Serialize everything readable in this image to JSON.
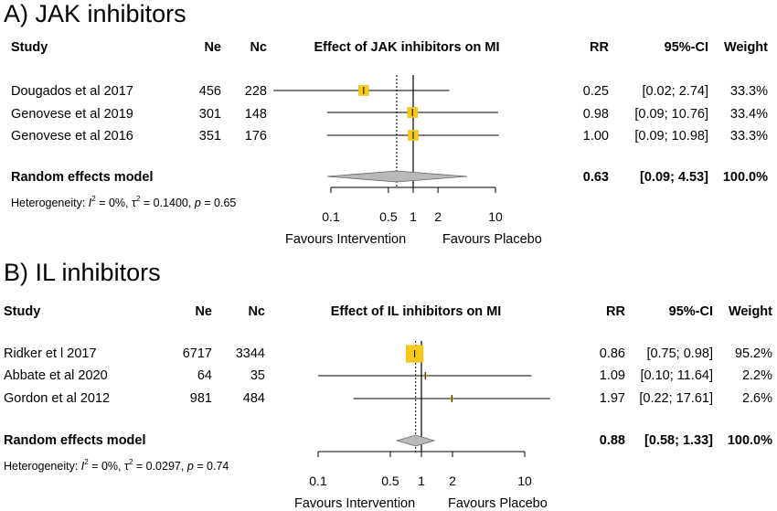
{
  "chart_data": [
    {
      "type": "forest",
      "panel_title": "A) JAK inhibitors",
      "headers": {
        "study": "Study",
        "ne": "Ne",
        "nc": "Nc",
        "effect": "Effect of JAK inhibitors on MI",
        "rr": "RR",
        "ci": "95%-CI",
        "weight": "Weight"
      },
      "studies": [
        {
          "name": "Dougados et al 2017",
          "ne": "456",
          "nc": "228",
          "rr": 0.25,
          "lo": 0.02,
          "hi": 2.74,
          "weight_pct": 33.3,
          "rr_text": "0.25",
          "ci_text": "[0.02;  2.74]",
          "weight_text": "33.3%"
        },
        {
          "name": "Genovese et al 2019",
          "ne": "301",
          "nc": "148",
          "rr": 0.98,
          "lo": 0.09,
          "hi": 10.76,
          "weight_pct": 33.4,
          "rr_text": "0.98",
          "ci_text": "[0.09; 10.76]",
          "weight_text": "33.4%"
        },
        {
          "name": "Genovese et al 2016",
          "ne": "351",
          "nc": "176",
          "rr": 1.0,
          "lo": 0.09,
          "hi": 10.98,
          "weight_pct": 33.3,
          "rr_text": "1.00",
          "ci_text": "[0.09; 10.98]",
          "weight_text": "33.3%"
        }
      ],
      "pooled": {
        "name": "Random effects model",
        "rr": 0.63,
        "lo": 0.09,
        "hi": 4.53,
        "rr_text": "0.63",
        "ci_text": "[0.09;  4.53]",
        "weight_text": "100.0%"
      },
      "heterogeneity": {
        "prefix": "Heterogeneity: ",
        "i2": "I",
        "i2_value": " = 0%, ",
        "tau": "τ",
        "tau_value": " = 0.1400, ",
        "p": "p",
        "p_value": " = 0.65"
      },
      "x_scale": "log",
      "ticks": [
        0.1,
        0.5,
        1,
        2,
        10
      ],
      "tick_labels": [
        "0.1",
        "0.5",
        "1",
        "2",
        "10"
      ],
      "xlim": [
        0.1,
        10
      ],
      "favours_left": "Favours Intervention",
      "favours_right": "Favours Placebo"
    },
    {
      "type": "forest",
      "panel_title": "B) IL inhibitors",
      "headers": {
        "study": "Study",
        "ne": "Ne",
        "nc": "Nc",
        "effect": "Effect of IL inhibitors on MI",
        "rr": "RR",
        "ci": "95%-CI",
        "weight": "Weight"
      },
      "studies": [
        {
          "name": "Ridker et l 2017",
          "ne": "6717",
          "nc": "3344",
          "rr": 0.86,
          "lo": 0.75,
          "hi": 0.98,
          "weight_pct": 95.2,
          "rr_text": "0.86",
          "ci_text": "[0.75;  0.98]",
          "weight_text": "95.2%"
        },
        {
          "name": "Abbate et al 2020",
          "ne": "64",
          "nc": "35",
          "rr": 1.09,
          "lo": 0.1,
          "hi": 11.64,
          "weight_pct": 2.2,
          "rr_text": "1.09",
          "ci_text": "[0.10; 11.64]",
          "weight_text": "2.2%"
        },
        {
          "name": "Gordon et al 2012",
          "ne": "981",
          "nc": "484",
          "rr": 1.97,
          "lo": 0.22,
          "hi": 17.61,
          "weight_pct": 2.6,
          "rr_text": "1.97",
          "ci_text": "[0.22; 17.61]",
          "weight_text": "2.6%"
        }
      ],
      "pooled": {
        "name": "Random effects model",
        "rr": 0.88,
        "lo": 0.58,
        "hi": 1.33,
        "rr_text": "0.88",
        "ci_text": "[0.58;  1.33]",
        "weight_text": "100.0%"
      },
      "heterogeneity": {
        "prefix": "Heterogeneity: ",
        "i2": "I",
        "i2_value": " = 0%, ",
        "tau": "τ",
        "tau_value": " = 0.0297, ",
        "p": "p",
        "p_value": " = 0.74"
      },
      "x_scale": "log",
      "ticks": [
        0.1,
        0.5,
        1,
        2,
        10
      ],
      "tick_labels": [
        "0.1",
        "0.5",
        "1",
        "2",
        "10"
      ],
      "xlim": [
        0.1,
        10
      ],
      "favours_left": "Favours Intervention",
      "favours_right": "Favours Placebo"
    }
  ],
  "colors": {
    "square": "#f6c91a",
    "square_edge": "#e7b400",
    "diamond": "#b9b9b9",
    "line": "#000000"
  }
}
